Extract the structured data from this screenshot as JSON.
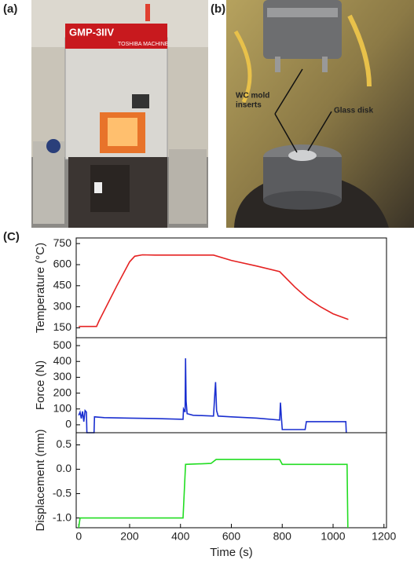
{
  "panels": {
    "a": {
      "label": "(a)",
      "machine_name": "GMP-3IIV",
      "maker": "TOSHIBA MACHINE"
    },
    "b": {
      "label": "(b)",
      "annotation_1": [
        "WC mold",
        "inserts"
      ],
      "annotation_2": "Glass disk"
    },
    "c": {
      "label": "(C)"
    }
  },
  "chart_data": [
    {
      "type": "line",
      "ylabel": "Temperature (°C)",
      "color": "#e52222",
      "x": [
        0,
        70,
        80,
        150,
        200,
        220,
        250,
        300,
        530,
        600,
        700,
        790,
        850,
        900,
        950,
        1000,
        1060
      ],
      "values": [
        160,
        160,
        200,
        450,
        620,
        660,
        670,
        668,
        668,
        630,
        590,
        550,
        440,
        360,
        300,
        250,
        210
      ],
      "xlim": [
        -10,
        1210
      ],
      "ylim": [
        80,
        790
      ],
      "yticks": [
        150,
        300,
        450,
        600,
        750
      ]
    },
    {
      "type": "line",
      "ylabel": "Force (N)",
      "color": "#1a2fd0",
      "x": [
        0,
        5,
        10,
        15,
        20,
        25,
        30,
        32,
        60,
        62,
        100,
        200,
        300,
        410,
        412,
        418,
        420,
        422,
        426,
        450,
        530,
        535,
        538,
        542,
        548,
        600,
        700,
        790,
        793,
        796,
        800,
        850,
        890,
        895,
        1000,
        1050,
        1052
      ],
      "values": [
        60,
        80,
        40,
        85,
        20,
        90,
        80,
        -50,
        -50,
        50,
        45,
        42,
        40,
        35,
        100,
        80,
        420,
        150,
        70,
        60,
        55,
        200,
        270,
        90,
        55,
        50,
        42,
        30,
        140,
        60,
        -30,
        -30,
        -30,
        20,
        20,
        20,
        -50
      ],
      "xlim": [
        -10,
        1210
      ],
      "ylim": [
        -50,
        550
      ],
      "yticks": [
        0,
        100,
        200,
        300,
        400,
        500
      ]
    },
    {
      "type": "line",
      "ylabel": "Displacement (mm)",
      "xlabel": "Time (s)",
      "color": "#22dd22",
      "x": [
        0,
        5,
        410,
        420,
        520,
        540,
        790,
        800,
        1050,
        1055,
        1058
      ],
      "values": [
        -1.2,
        -1.0,
        -1.0,
        0.1,
        0.12,
        0.2,
        0.2,
        0.1,
        0.1,
        0.1,
        -1.2
      ],
      "xlim": [
        -10,
        1210
      ],
      "ylim": [
        -1.2,
        0.75
      ],
      "yticks": [
        0.5,
        {
          "value": 0,
          "label": "0.0"
        },
        -0.5,
        {
          "value": -1,
          "label": "-1.0"
        }
      ],
      "xticks": [
        0,
        200,
        400,
        600,
        800,
        1000,
        1200
      ]
    }
  ]
}
